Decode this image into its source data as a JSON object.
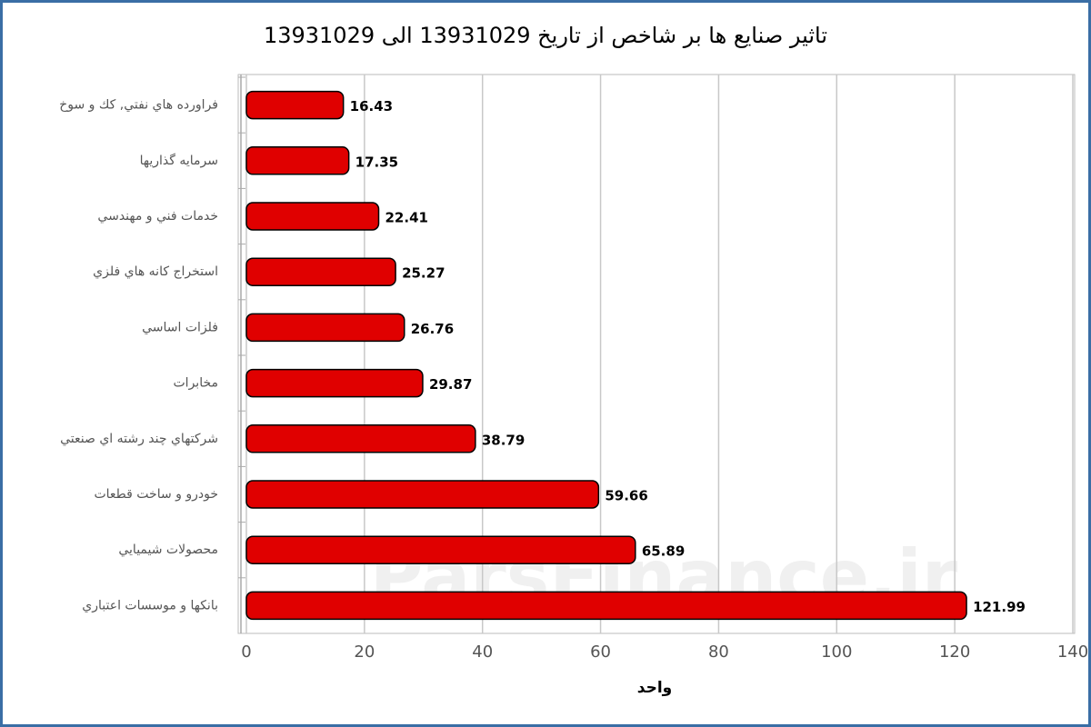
{
  "chart_data": {
    "type": "bar",
    "orientation": "horizontal",
    "title": "تاثیر صنایع ها بر شاخص از تاریخ 13931029 الی 13931029",
    "categories": [
      "فراورده هاي نفتي, كك و سوخ",
      "سرمايه گذاريها",
      "خدمات فني و مهندسي",
      "استخراج كانه هاي فلزي",
      "فلزات اساسي",
      "مخابرات",
      "شركتهاي چند رشته اي صنعتي",
      "خودرو و ساخت قطعات",
      "محصولات شيميايي",
      "بانكها و موسسات اعتباري"
    ],
    "values": [
      16.43,
      17.35,
      22.41,
      25.27,
      26.76,
      29.87,
      38.79,
      59.66,
      65.89,
      121.99
    ],
    "color": "#e00000",
    "xlim": [
      0,
      140
    ],
    "xticks": [
      0,
      20,
      40,
      60,
      80,
      100,
      120,
      140
    ],
    "x_label": "واحد",
    "grid": true,
    "watermark": "ParsFinance.ir"
  }
}
